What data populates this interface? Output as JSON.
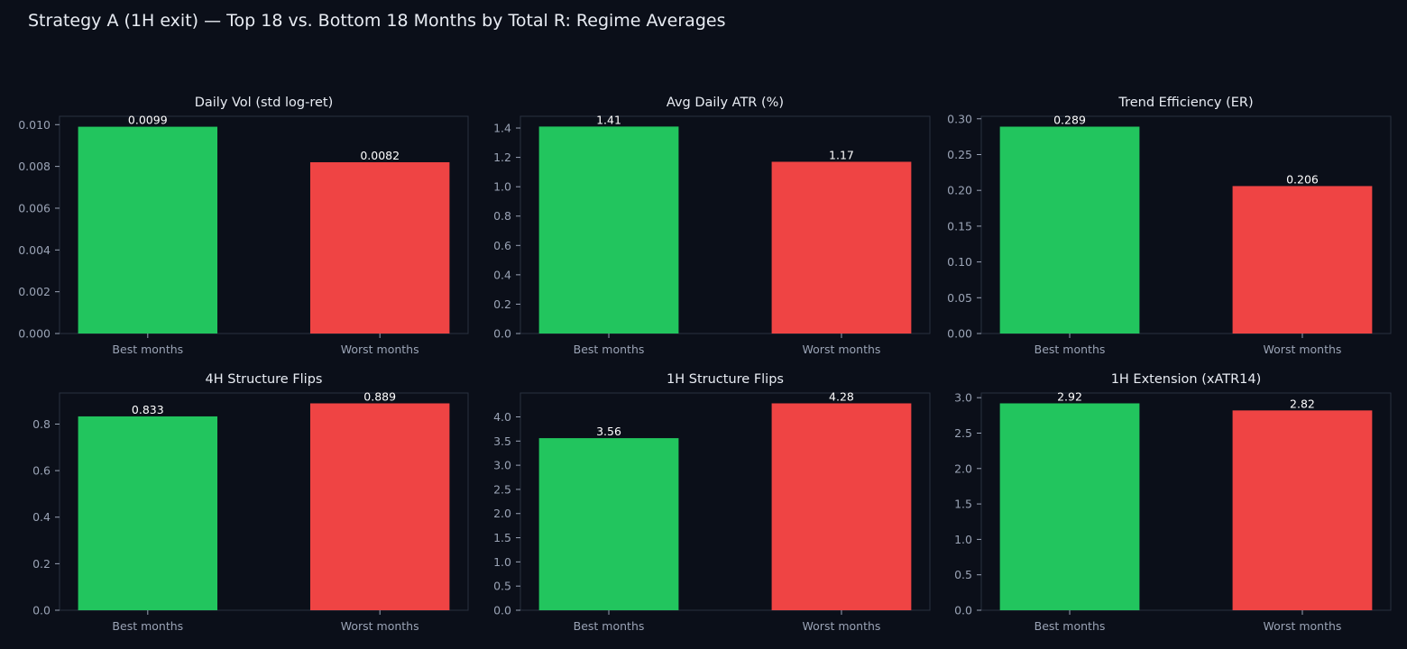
{
  "figure": {
    "title": "Strategy A (1H exit) — Top 18 vs. Bottom 18 Months by Total R: Regime Averages",
    "colors": {
      "background": "#0b0f19",
      "text": "#e8ecf3",
      "tick_text": "#9aa3b5",
      "axes_frame": "#2a3040"
    }
  },
  "chart_data": [
    {
      "type": "bar",
      "title": "Daily Vol (std log-ret)",
      "categories": [
        "Best months",
        "Worst months"
      ],
      "values": [
        0.0099,
        0.0082
      ],
      "value_labels": [
        "0.0099",
        "0.0082"
      ],
      "colors": [
        "#22c55e",
        "#ef4444"
      ],
      "ylim": [
        0,
        0.0104
      ],
      "yticks": [
        0,
        0.002,
        0.004,
        0.006,
        0.008,
        0.01
      ],
      "ytick_labels": [
        "0.000",
        "0.002",
        "0.004",
        "0.006",
        "0.008",
        "0.010"
      ],
      "grid": false,
      "legend": "none"
    },
    {
      "type": "bar",
      "title": "Avg Daily ATR (%)",
      "categories": [
        "Best months",
        "Worst months"
      ],
      "values": [
        1.41,
        1.17
      ],
      "value_labels": [
        "1.41",
        "1.17"
      ],
      "colors": [
        "#22c55e",
        "#ef4444"
      ],
      "ylim": [
        0,
        1.48
      ],
      "yticks": [
        0,
        0.2,
        0.4,
        0.6,
        0.8,
        1.0,
        1.2,
        1.4
      ],
      "ytick_labels": [
        "0.0",
        "0.2",
        "0.4",
        "0.6",
        "0.8",
        "1.0",
        "1.2",
        "1.4"
      ],
      "grid": false,
      "legend": "none"
    },
    {
      "type": "bar",
      "title": "Trend Efficiency (ER)",
      "categories": [
        "Best months",
        "Worst months"
      ],
      "values": [
        0.289,
        0.206
      ],
      "value_labels": [
        "0.289",
        "0.206"
      ],
      "colors": [
        "#22c55e",
        "#ef4444"
      ],
      "ylim": [
        0,
        0.3035
      ],
      "yticks": [
        0,
        0.05,
        0.1,
        0.15,
        0.2,
        0.25,
        0.3
      ],
      "ytick_labels": [
        "0.00",
        "0.05",
        "0.10",
        "0.15",
        "0.20",
        "0.25",
        "0.30"
      ],
      "grid": false,
      "legend": "none"
    },
    {
      "type": "bar",
      "title": "4H Structure Flips",
      "categories": [
        "Best months",
        "Worst months"
      ],
      "values": [
        0.833,
        0.889
      ],
      "value_labels": [
        "0.833",
        "0.889"
      ],
      "colors": [
        "#22c55e",
        "#ef4444"
      ],
      "ylim": [
        0,
        0.9335
      ],
      "yticks": [
        0,
        0.2,
        0.4,
        0.6,
        0.8
      ],
      "ytick_labels": [
        "0.0",
        "0.2",
        "0.4",
        "0.6",
        "0.8"
      ],
      "grid": false,
      "legend": "none"
    },
    {
      "type": "bar",
      "title": "1H Structure Flips",
      "categories": [
        "Best months",
        "Worst months"
      ],
      "values": [
        3.56,
        4.28
      ],
      "value_labels": [
        "3.56",
        "4.28"
      ],
      "colors": [
        "#22c55e",
        "#ef4444"
      ],
      "ylim": [
        0,
        4.494
      ],
      "yticks": [
        0,
        0.5,
        1.0,
        1.5,
        2.0,
        2.5,
        3.0,
        3.5,
        4.0
      ],
      "ytick_labels": [
        "0.0",
        "0.5",
        "1.0",
        "1.5",
        "2.0",
        "2.5",
        "3.0",
        "3.5",
        "4.0"
      ],
      "grid": false,
      "legend": "none"
    },
    {
      "type": "bar",
      "title": "1H Extension (xATR14)",
      "categories": [
        "Best months",
        "Worst months"
      ],
      "values": [
        2.92,
        2.82
      ],
      "value_labels": [
        "2.92",
        "2.82"
      ],
      "colors": [
        "#22c55e",
        "#ef4444"
      ],
      "ylim": [
        0,
        3.066
      ],
      "yticks": [
        0,
        0.5,
        1.0,
        1.5,
        2.0,
        2.5,
        3.0
      ],
      "ytick_labels": [
        "0.0",
        "0.5",
        "1.0",
        "1.5",
        "2.0",
        "2.5",
        "3.0"
      ],
      "grid": false,
      "legend": "none"
    }
  ]
}
